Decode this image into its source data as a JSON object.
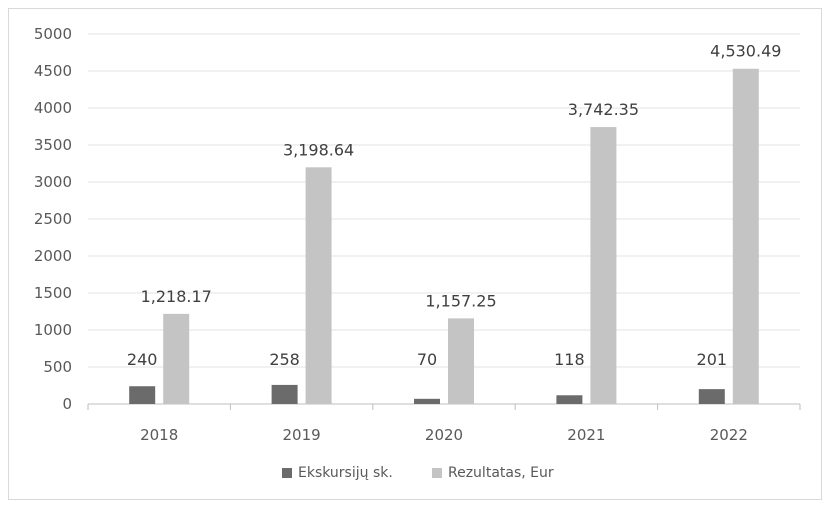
{
  "chart_data": {
    "type": "bar",
    "categories": [
      "2018",
      "2019",
      "2020",
      "2021",
      "2022"
    ],
    "series": [
      {
        "name": "Ekskursijų sk.",
        "values": [
          240,
          258,
          70,
          118,
          201
        ],
        "labels": [
          "240",
          "258",
          "70",
          "118",
          "201"
        ],
        "color": "#6b6b6b"
      },
      {
        "name": "Rezultatas, Eur",
        "values": [
          1218.17,
          3198.64,
          1157.25,
          3742.35,
          4530.49
        ],
        "labels": [
          "1,218.17",
          "3,198.64",
          "1,157.25",
          "3,742.35",
          "4,530.49"
        ],
        "color": "#c4c4c4"
      }
    ],
    "ylim": [
      0,
      5000
    ],
    "yticks": [
      "0",
      "500",
      "1000",
      "1500",
      "2000",
      "2500",
      "3000",
      "3500",
      "4000",
      "4500",
      "5000"
    ],
    "grid": true,
    "legend_position": "bottom"
  }
}
